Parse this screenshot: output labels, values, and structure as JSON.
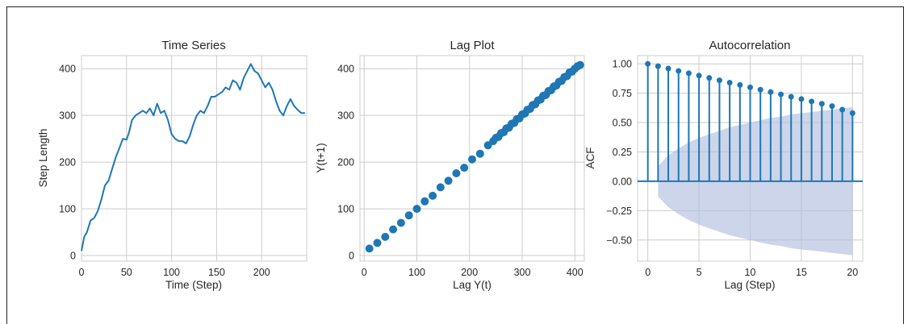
{
  "colors": {
    "series": "#1f77b4",
    "grid": "#cccccc",
    "band": "#b0bfdf",
    "text": "#262626"
  },
  "chart_data": [
    {
      "type": "line",
      "title": "Time Series",
      "xlabel": "Time (Step)",
      "ylabel": "Step Length",
      "xlim": [
        0,
        250
      ],
      "ylim": [
        -12,
        428
      ],
      "xticks": [
        0,
        50,
        100,
        150,
        200
      ],
      "yticks": [
        0,
        100,
        200,
        300,
        400
      ],
      "grid": true,
      "series": [
        {
          "x": [
            0,
            3,
            6,
            10,
            14,
            18,
            22,
            26,
            30,
            34,
            38,
            42,
            46,
            50,
            53,
            56,
            60,
            64,
            68,
            72,
            76,
            80,
            84,
            88,
            92,
            96,
            100,
            104,
            108,
            112,
            116,
            120,
            124,
            128,
            132,
            136,
            140,
            144,
            148,
            152,
            156,
            160,
            164,
            168,
            172,
            176,
            180,
            184,
            188,
            192,
            196,
            200,
            204,
            208,
            212,
            216,
            220,
            224,
            228,
            232,
            236,
            240,
            244,
            248
          ],
          "y": [
            10,
            40,
            50,
            75,
            80,
            95,
            120,
            150,
            160,
            185,
            210,
            230,
            250,
            248,
            265,
            290,
            300,
            305,
            310,
            305,
            315,
            300,
            325,
            305,
            310,
            290,
            260,
            250,
            245,
            245,
            240,
            255,
            280,
            300,
            310,
            305,
            320,
            340,
            340,
            345,
            350,
            360,
            355,
            375,
            370,
            355,
            380,
            395,
            410,
            395,
            390,
            375,
            360,
            370,
            355,
            330,
            310,
            300,
            320,
            335,
            320,
            312,
            305,
            305
          ]
        }
      ]
    },
    {
      "type": "scatter",
      "title": "Lag Plot",
      "xlabel": "Lag Y(t)",
      "ylabel": "Y(t+1)",
      "xlim": [
        -8,
        418
      ],
      "ylim": [
        -12,
        428
      ],
      "xticks": [
        0,
        100,
        200,
        300,
        400
      ],
      "yticks": [
        0,
        100,
        200,
        300,
        400
      ],
      "grid": true,
      "series": [
        {
          "x": [
            10,
            25,
            40,
            55,
            70,
            85,
            100,
            115,
            130,
            145,
            160,
            175,
            190,
            205,
            220,
            235,
            245,
            250,
            255,
            260,
            265,
            270,
            275,
            280,
            285,
            290,
            295,
            300,
            305,
            310,
            315,
            320,
            325,
            330,
            335,
            340,
            345,
            350,
            355,
            360,
            365,
            370,
            375,
            380,
            385,
            390,
            395,
            400,
            405,
            410
          ],
          "y": [
            15,
            27,
            40,
            56,
            70,
            86,
            100,
            116,
            128,
            146,
            160,
            176,
            188,
            206,
            218,
            236,
            245,
            252,
            254,
            262,
            264,
            272,
            274,
            282,
            284,
            292,
            294,
            302,
            304,
            312,
            314,
            322,
            324,
            332,
            334,
            342,
            344,
            352,
            354,
            362,
            364,
            372,
            374,
            382,
            384,
            392,
            394,
            400,
            405,
            408
          ]
        }
      ]
    },
    {
      "type": "stem",
      "title": "Autocorrelation",
      "xlabel": "Lag (Step)",
      "ylabel": "ACF",
      "xlim": [
        -1,
        21
      ],
      "ylim": [
        -0.68,
        1.07
      ],
      "xticks": [
        0,
        5,
        10,
        15,
        20
      ],
      "yticks": [
        -0.5,
        -0.25,
        0.0,
        0.25,
        0.5,
        0.75,
        1.0
      ],
      "ytick_labels": [
        "−0.50",
        "−0.25",
        "0.00",
        "0.25",
        "0.50",
        "0.75",
        "1.00"
      ],
      "grid": true,
      "lags": [
        0,
        1,
        2,
        3,
        4,
        5,
        6,
        7,
        8,
        9,
        10,
        11,
        12,
        13,
        14,
        15,
        16,
        17,
        18,
        19,
        20
      ],
      "values": [
        1.0,
        0.98,
        0.96,
        0.94,
        0.92,
        0.9,
        0.88,
        0.86,
        0.84,
        0.82,
        0.8,
        0.78,
        0.76,
        0.74,
        0.72,
        0.7,
        0.68,
        0.66,
        0.64,
        0.61,
        0.58
      ],
      "confidence_band": {
        "lags": [
          1,
          2,
          3,
          4,
          5,
          6,
          7,
          8,
          9,
          10,
          11,
          12,
          13,
          14,
          15,
          16,
          17,
          18,
          19,
          20
        ],
        "upper": [
          0.13,
          0.22,
          0.28,
          0.33,
          0.37,
          0.4,
          0.43,
          0.46,
          0.48,
          0.5,
          0.52,
          0.54,
          0.55,
          0.57,
          0.58,
          0.59,
          0.6,
          0.61,
          0.62,
          0.63
        ],
        "lower": [
          -0.13,
          -0.22,
          -0.28,
          -0.33,
          -0.37,
          -0.4,
          -0.43,
          -0.46,
          -0.48,
          -0.5,
          -0.52,
          -0.54,
          -0.55,
          -0.57,
          -0.58,
          -0.59,
          -0.6,
          -0.61,
          -0.62,
          -0.63
        ]
      }
    }
  ]
}
